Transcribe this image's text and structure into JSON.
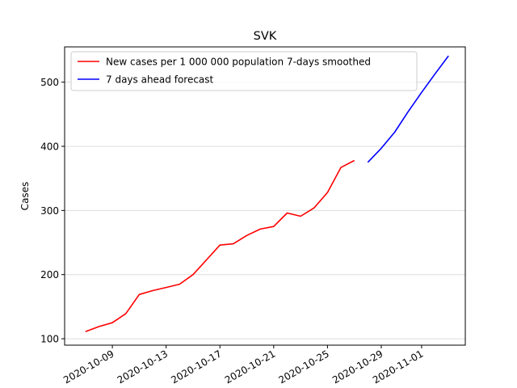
{
  "chart_data": {
    "type": "line",
    "title": "SVK",
    "ylabel": "Cases",
    "xlabel": "",
    "ylim": [
      90,
      555
    ],
    "xlim": [
      "2020-10-06",
      "2020-11-04"
    ],
    "grid": "horizontal",
    "legend_placement": "top-left",
    "yticks": [
      100,
      200,
      300,
      400,
      500
    ],
    "xticks": [
      "2020-10-09",
      "2020-10-13",
      "2020-10-17",
      "2020-10-21",
      "2020-10-25",
      "2020-10-29",
      "2020-11-01"
    ],
    "series": [
      {
        "name": "New cases per 1 000 000 population 7-days smoothed",
        "color": "#ff0000",
        "points": [
          [
            "2020-10-07",
            111
          ],
          [
            "2020-10-08",
            119
          ],
          [
            "2020-10-09",
            125
          ],
          [
            "2020-10-10",
            139
          ],
          [
            "2020-10-11",
            169
          ],
          [
            "2020-10-12",
            175
          ],
          [
            "2020-10-13",
            180
          ],
          [
            "2020-10-14",
            185
          ],
          [
            "2020-10-15",
            200
          ],
          [
            "2020-10-16",
            223
          ],
          [
            "2020-10-17",
            246
          ],
          [
            "2020-10-18",
            248
          ],
          [
            "2020-10-19",
            261
          ],
          [
            "2020-10-20",
            271
          ],
          [
            "2020-10-21",
            275
          ],
          [
            "2020-10-22",
            296
          ],
          [
            "2020-10-23",
            291
          ],
          [
            "2020-10-24",
            304
          ],
          [
            "2020-10-25",
            328
          ],
          [
            "2020-10-26",
            367
          ],
          [
            "2020-10-27",
            378
          ]
        ]
      },
      {
        "name": "7 days ahead forecast",
        "color": "#0000ff",
        "points": [
          [
            "2020-10-28",
            375
          ],
          [
            "2020-10-29",
            397
          ],
          [
            "2020-10-30",
            422
          ],
          [
            "2020-10-31",
            454
          ],
          [
            "2020-11-01",
            484
          ],
          [
            "2020-11-02",
            513
          ],
          [
            "2020-11-03",
            541
          ]
        ]
      }
    ]
  }
}
